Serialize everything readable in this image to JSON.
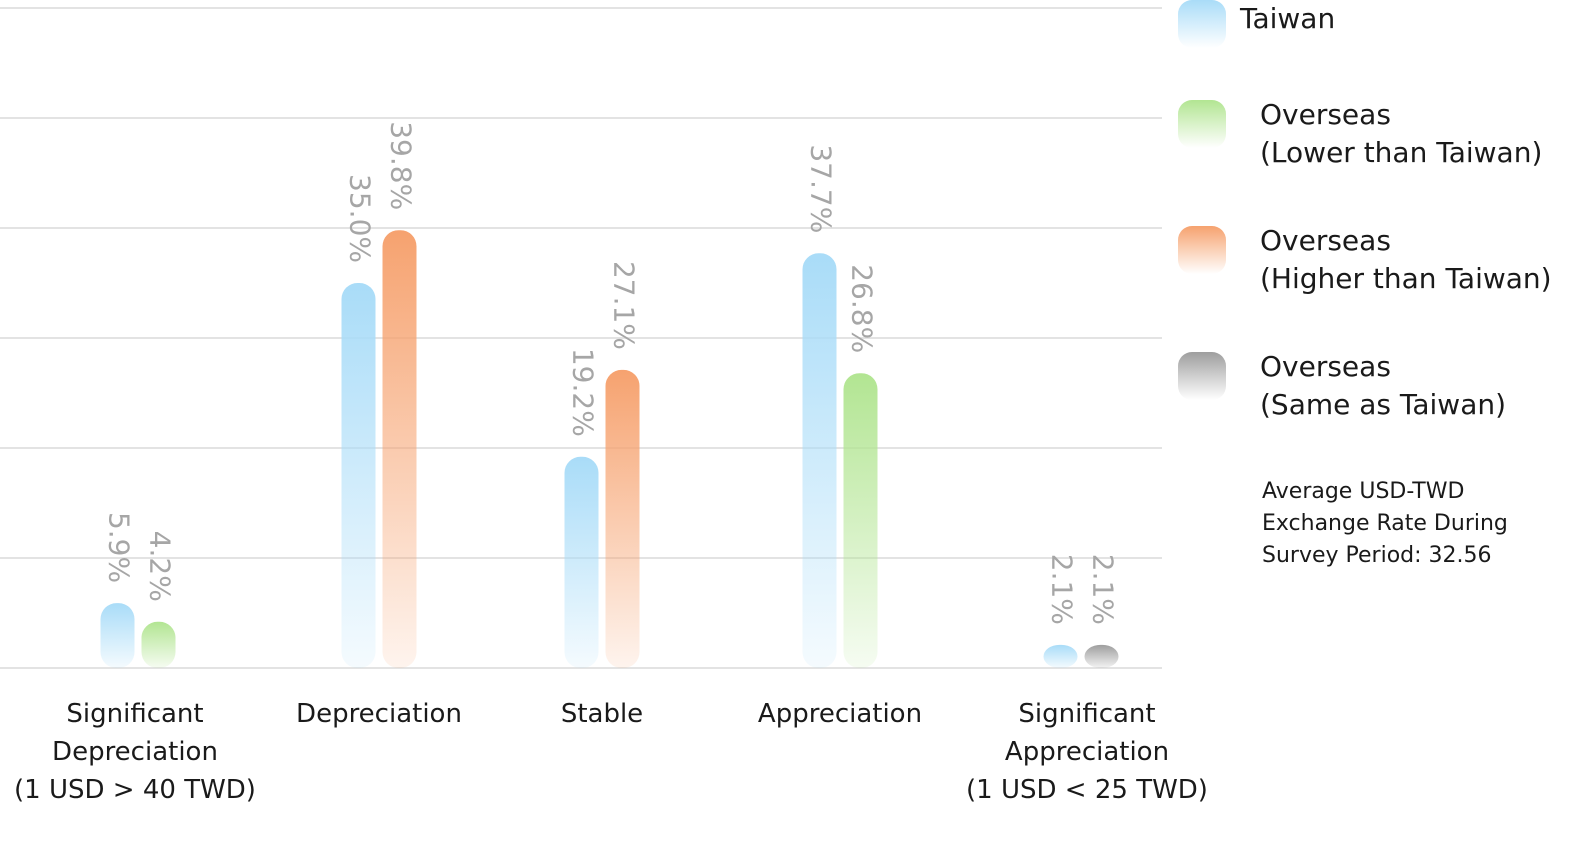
{
  "chart_data": {
    "type": "bar",
    "title": "",
    "xlabel": "",
    "ylabel": "",
    "ylim": [
      0,
      60
    ],
    "grid": true,
    "legend_position": "right",
    "categories": [
      [
        "Significant",
        "Depreciation",
        "(1 USD > 40 TWD)"
      ],
      [
        "Depreciation"
      ],
      [
        "Stable"
      ],
      [
        "Appreciation"
      ],
      [
        "Significant",
        "Appreciation",
        "(1 USD < 25 TWD)"
      ]
    ],
    "bars": [
      [
        {
          "series": 0,
          "value": 5.9,
          "label": "5.9%"
        },
        {
          "series": 1,
          "value": 4.2,
          "label": "4.2%"
        }
      ],
      [
        {
          "series": 0,
          "value": 35.0,
          "label": "35.0%"
        },
        {
          "series": 2,
          "value": 39.8,
          "label": "39.8%"
        }
      ],
      [
        {
          "series": 0,
          "value": 19.2,
          "label": "19.2%"
        },
        {
          "series": 2,
          "value": 27.1,
          "label": "27.1%"
        }
      ],
      [
        {
          "series": 0,
          "value": 37.7,
          "label": "37.7%"
        },
        {
          "series": 1,
          "value": 26.8,
          "label": "26.8%"
        }
      ],
      [
        {
          "series": 0,
          "value": 2.1,
          "label": "2.1%"
        },
        {
          "series": 3,
          "value": 2.1,
          "label": "2.1%"
        }
      ]
    ],
    "series": [
      {
        "name": [
          "Taiwan"
        ],
        "color": "#a9dcf8"
      },
      {
        "name": [
          "Overseas",
          "(Lower than Taiwan)"
        ],
        "color": "#b2e592"
      },
      {
        "name": [
          "Overseas",
          "(Higher than Taiwan)"
        ],
        "color": "#f6a26f"
      },
      {
        "name": [
          "Overseas",
          "(Same as Taiwan)"
        ],
        "color": "#9e9e9e"
      }
    ]
  },
  "note": {
    "lines": [
      "Average USD-TWD",
      "Exchange Rate During",
      "Survey Period: 32.56"
    ]
  }
}
